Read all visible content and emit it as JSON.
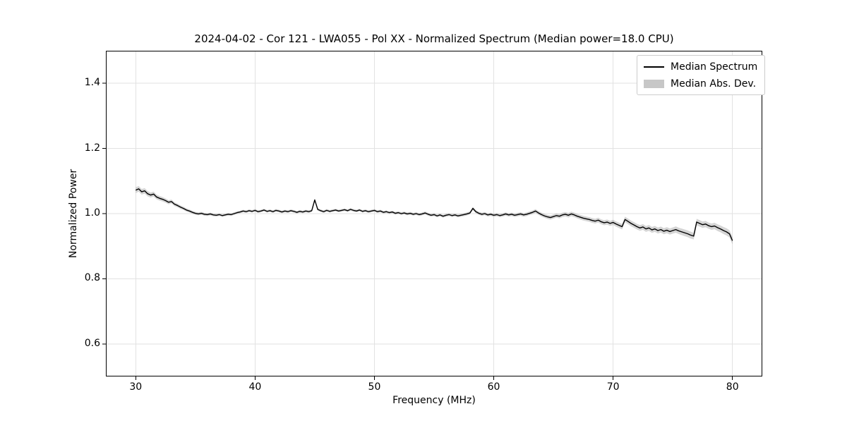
{
  "chart_data": {
    "type": "line",
    "title": "2024-04-02 - Cor 121 - LWA055 - Pol XX - Normalized Spectrum (Median power=18.0 CPU)",
    "xlabel": "Frequency (MHz)",
    "ylabel": "Normalized Power",
    "xlim": [
      27.5,
      82.5
    ],
    "ylim": [
      0.5,
      1.5
    ],
    "xticks": [
      30,
      40,
      50,
      60,
      70,
      80
    ],
    "yticks": [
      0.6,
      0.8,
      1.0,
      1.2,
      1.4
    ],
    "grid": true,
    "legend_position": "upper right",
    "legend": {
      "entries": [
        {
          "label": "Median Spectrum",
          "sample": "line",
          "color": "#000000"
        },
        {
          "label": "Median Abs. Dev.",
          "sample": "patch",
          "color": "#c7c7c7"
        }
      ]
    },
    "colors": {
      "line": "#000000",
      "band": "#9a9a9a",
      "band_opacity": 0.42,
      "grid": "#e2e2e2",
      "frame": "#000000",
      "text": "#000000"
    },
    "series": [
      {
        "name": "Median Spectrum",
        "freq_start": 30,
        "freq_step": 0.25,
        "values": [
          1.072,
          1.076,
          1.067,
          1.07,
          1.061,
          1.057,
          1.06,
          1.051,
          1.047,
          1.044,
          1.04,
          1.035,
          1.037,
          1.029,
          1.025,
          1.02,
          1.016,
          1.011,
          1.008,
          1.004,
          1.001,
          0.999,
          1.001,
          0.998,
          0.997,
          0.999,
          0.996,
          0.995,
          0.997,
          0.994,
          0.996,
          0.998,
          0.997,
          1.0,
          1.003,
          1.005,
          1.008,
          1.006,
          1.009,
          1.007,
          1.01,
          1.006,
          1.008,
          1.011,
          1.007,
          1.009,
          1.006,
          1.01,
          1.008,
          1.005,
          1.008,
          1.006,
          1.009,
          1.007,
          1.004,
          1.007,
          1.005,
          1.008,
          1.006,
          1.009,
          1.042,
          1.013,
          1.009,
          1.006,
          1.01,
          1.007,
          1.009,
          1.011,
          1.008,
          1.01,
          1.012,
          1.009,
          1.013,
          1.01,
          1.008,
          1.011,
          1.007,
          1.009,
          1.006,
          1.008,
          1.01,
          1.006,
          1.008,
          1.004,
          1.006,
          1.003,
          1.005,
          1.001,
          1.003,
          1.0,
          1.002,
          0.999,
          1.001,
          0.998,
          1.0,
          0.997,
          0.999,
          1.002,
          0.998,
          0.995,
          0.997,
          0.993,
          0.996,
          0.992,
          0.995,
          0.997,
          0.994,
          0.996,
          0.993,
          0.995,
          0.997,
          0.999,
          1.002,
          1.016,
          1.006,
          1.001,
          0.998,
          1.0,
          0.996,
          0.998,
          0.995,
          0.997,
          0.994,
          0.996,
          0.999,
          0.996,
          0.998,
          0.995,
          0.997,
          0.999,
          0.996,
          0.998,
          1.001,
          1.004,
          1.008,
          1.002,
          0.997,
          0.993,
          0.99,
          0.988,
          0.991,
          0.994,
          0.992,
          0.996,
          0.998,
          0.995,
          0.999,
          0.996,
          0.992,
          0.989,
          0.986,
          0.984,
          0.982,
          0.979,
          0.977,
          0.98,
          0.975,
          0.972,
          0.974,
          0.97,
          0.973,
          0.968,
          0.964,
          0.96,
          0.982,
          0.976,
          0.97,
          0.965,
          0.96,
          0.956,
          0.959,
          0.953,
          0.956,
          0.95,
          0.953,
          0.948,
          0.951,
          0.946,
          0.949,
          0.945,
          0.948,
          0.951,
          0.947,
          0.944,
          0.941,
          0.938,
          0.934,
          0.931,
          0.974,
          0.97,
          0.966,
          0.968,
          0.963,
          0.96,
          0.962,
          0.957,
          0.953,
          0.948,
          0.944,
          0.938,
          0.917
        ]
      }
    ],
    "band": {
      "name": "Median Abs. Dev.",
      "mad_anchors": [
        [
          30,
          0.009
        ],
        [
          31,
          0.008
        ],
        [
          32,
          0.007
        ],
        [
          33,
          0.006
        ],
        [
          34,
          0.005
        ],
        [
          35,
          0.0045
        ],
        [
          38,
          0.004
        ],
        [
          44,
          0.004
        ],
        [
          50,
          0.004
        ],
        [
          55,
          0.0045
        ],
        [
          60,
          0.005
        ],
        [
          63,
          0.0055
        ],
        [
          65,
          0.0065
        ],
        [
          67,
          0.007
        ],
        [
          69,
          0.0075
        ],
        [
          71,
          0.0085
        ],
        [
          73,
          0.009
        ],
        [
          75,
          0.0095
        ],
        [
          76.5,
          0.0105
        ],
        [
          77,
          0.01
        ],
        [
          78,
          0.0095
        ],
        [
          79,
          0.0105
        ],
        [
          80,
          0.0115
        ]
      ]
    }
  }
}
